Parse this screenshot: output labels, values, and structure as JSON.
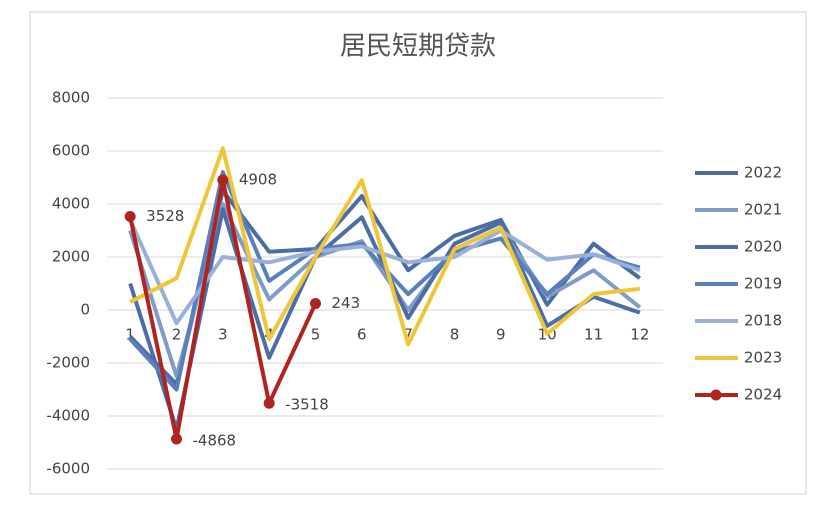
{
  "chart_data": {
    "type": "line",
    "title": "居民短期贷款",
    "categories": [
      "1",
      "2",
      "3",
      "4",
      "5",
      "6",
      "7",
      "8",
      "9",
      "10",
      "11",
      "12"
    ],
    "ylim": [
      -6000,
      8000
    ],
    "yticks": [
      -6000,
      -4000,
      -2000,
      0,
      2000,
      4000,
      6000,
      8000
    ],
    "grid": true,
    "legend": "right",
    "series": [
      {
        "name": "2022",
        "color": "#4a6da3",
        "values": [
          -1000,
          -2800,
          4500,
          2200,
          2300,
          4300,
          1500,
          2800,
          3400,
          200,
          2500,
          1200
        ]
      },
      {
        "name": "2021",
        "color": "#7f9cc8",
        "values": [
          3000,
          -2500,
          4000,
          400,
          2000,
          2600,
          0,
          2300,
          3100,
          500,
          1500,
          100
        ]
      },
      {
        "name": "2020",
        "color": "#4b6ea8",
        "values": [
          1000,
          -4500,
          3800,
          -1800,
          2000,
          3500,
          -300,
          2500,
          3300,
          -600,
          500,
          -100
        ]
      },
      {
        "name": "2019",
        "color": "#5a7fbd",
        "values": [
          -1100,
          -3000,
          5200,
          1100,
          2300,
          2500,
          600,
          2200,
          2700,
          600,
          2100,
          1600
        ]
      },
      {
        "name": "2018",
        "color": "#9ab0d6",
        "values": [
          3400,
          -500,
          2000,
          1800,
          2200,
          2400,
          1800,
          2000,
          3000,
          1900,
          2100,
          1500
        ]
      },
      {
        "name": "2023",
        "color": "#efc63a",
        "values": [
          300,
          1200,
          6100,
          -1100,
          2000,
          4900,
          -1300,
          2300,
          3100,
          -900,
          600,
          800
        ]
      },
      {
        "name": "2024",
        "color": "#b02420",
        "markers": true,
        "show_labels": true,
        "values": [
          3528,
          -4868,
          4908,
          -3518,
          243,
          null,
          null,
          null,
          null,
          null,
          null,
          null
        ]
      }
    ]
  }
}
